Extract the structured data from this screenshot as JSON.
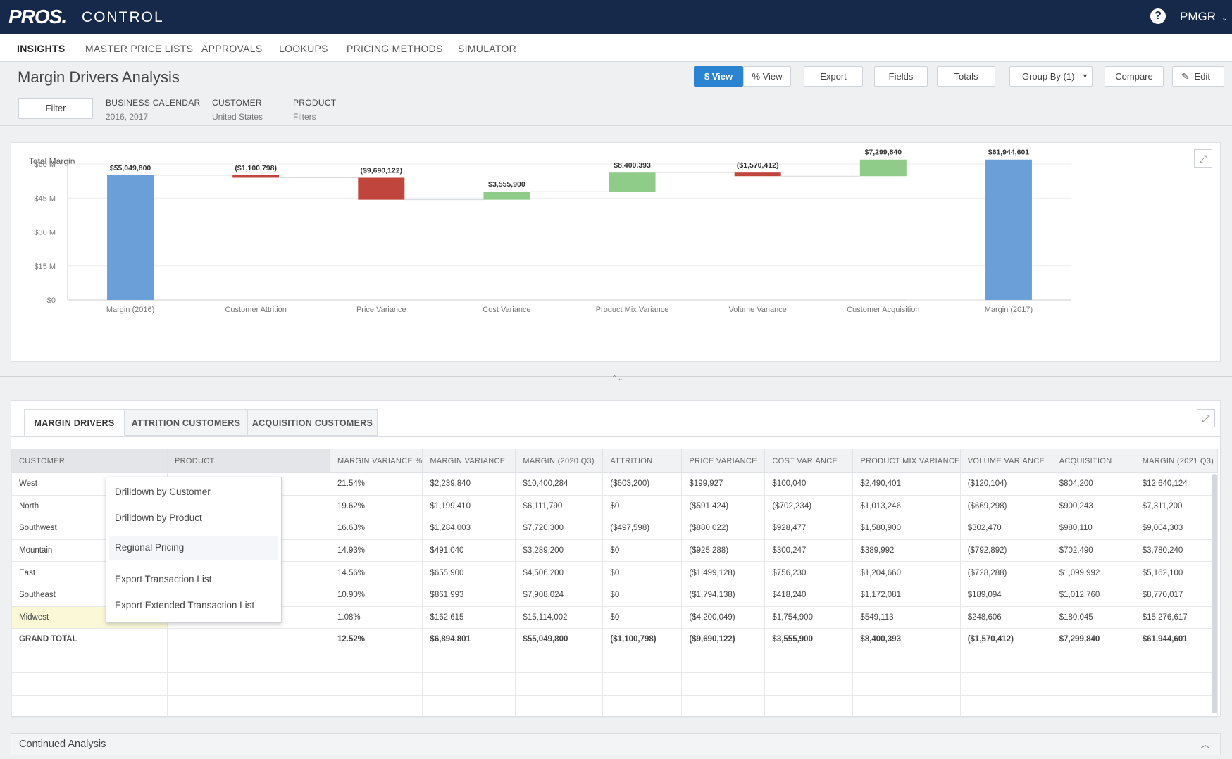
{
  "app": {
    "logo": "PROS.",
    "name": "CONTROL",
    "help_icon": "?",
    "user": "PMGR",
    "user_chevron": "⌄"
  },
  "nav": [
    {
      "label": "INSIGHTS",
      "active": true
    },
    {
      "label": "MASTER PRICE LISTS"
    },
    {
      "label": "APPROVALS"
    },
    {
      "label": "LOOKUPS"
    },
    {
      "label": "PRICING METHODS"
    },
    {
      "label": "SIMULATOR"
    }
  ],
  "page": {
    "title": "Margin Drivers Analysis"
  },
  "toolbar": {
    "dollar_view": "$ View",
    "pct_view": "% View",
    "export": "Export",
    "fields": "Fields",
    "totals": "Totals",
    "group_by": "Group By (1)",
    "compare": "Compare",
    "edit": "Edit"
  },
  "filters": {
    "button": "Filter",
    "groups": [
      {
        "label": "BUSINESS CALENDAR",
        "value": "2016, 2017"
      },
      {
        "label": "CUSTOMER",
        "value": "United States"
      },
      {
        "label": "PRODUCT",
        "value": "Filters"
      }
    ]
  },
  "chart_data": {
    "type": "bar",
    "subtype": "waterfall",
    "title": "Total Margin",
    "categories": [
      "Margin (2016)",
      "Customer Attrition",
      "Price Variance",
      "Cost Variance",
      "Product Mix Variance",
      "Volume Variance",
      "Customer Acquisition",
      "Margin (2017)"
    ],
    "values": [
      55049800,
      -1100798,
      -9690122,
      3555900,
      8400393,
      -1570412,
      7299840,
      61944601
    ],
    "kinds": [
      "total",
      "delta",
      "delta",
      "delta",
      "delta",
      "delta",
      "delta",
      "total"
    ],
    "data_labels": [
      "$55,049,800",
      "($1,100,798)",
      "($9,690,122)",
      "$3,555,900",
      "$8,400,393",
      "($1,570,412)",
      "$7,299,840",
      "$61,944,601"
    ],
    "ylim": [
      0,
      60000000
    ],
    "yticks": [
      0,
      15000000,
      30000000,
      45000000,
      60000000
    ],
    "ytick_labels": [
      "$0",
      "$15 M",
      "$30 M",
      "$45 M",
      "$60 M"
    ],
    "colors": {
      "total": "#6a9fd8",
      "increase": "#8fcc8a",
      "decrease": "#c0463d"
    },
    "grid": true
  },
  "tabs": [
    "MARGIN DRIVERS",
    "ATTRITION CUSTOMERS",
    "ACQUISITION CUSTOMERS"
  ],
  "table": {
    "columns": [
      "CUSTOMER",
      "PRODUCT",
      "MARGIN VARIANCE %",
      "MARGIN VARIANCE",
      "MARGIN (2020 Q3)",
      "ATTRITION",
      "PRICE VARIANCE",
      "COST VARIANCE",
      "PRODUCT MIX VARIANCE",
      "VOLUME VARIANCE",
      "ACQUISITION",
      "MARGIN (2021 Q3)"
    ],
    "rows": [
      [
        "West",
        "",
        "21.54%",
        "$2,239,840",
        "$10,400,284",
        "($603,200)",
        "$199,927",
        "$100,040",
        "$2,490,401",
        "($120,104)",
        "$804,200",
        "$12,640,124"
      ],
      [
        "North",
        "",
        "19.62%",
        "$1,199,410",
        "$6,111,790",
        "$0",
        "($591,424)",
        "($702,234)",
        "$1,013,246",
        "($669,298)",
        "$900,243",
        "$7,311,200"
      ],
      [
        "Southwest",
        "",
        "16.63%",
        "$1,284,003",
        "$7,720,300",
        "($497,598)",
        "($880,022)",
        "$928,477",
        "$1,580,900",
        "$302,470",
        "$980,110",
        "$9,004,303"
      ],
      [
        "Mountain",
        "",
        "14.93%",
        "$491,040",
        "$3,289,200",
        "$0",
        "($925,288)",
        "$300,247",
        "$389,992",
        "($792,892)",
        "$702,490",
        "$3,780,240"
      ],
      [
        "East",
        "",
        "14.56%",
        "$655,900",
        "$4,506,200",
        "$0",
        "($1,499,128)",
        "$756,230",
        "$1,204,660",
        "($728,288)",
        "$1,099,992",
        "$5,162,100"
      ],
      [
        "Southeast",
        "",
        "10.90%",
        "$861,993",
        "$7,908,024",
        "$0",
        "($1,794,138)",
        "$418,240",
        "$1,172,081",
        "$189,094",
        "$1,012,760",
        "$8,770,017"
      ],
      [
        "Midwest",
        "",
        "1.08%",
        "$162,615",
        "$15,114,002",
        "$0",
        "($4,200,049)",
        "$1,754,900",
        "$549,113",
        "$248,606",
        "$180,045",
        "$15,276,617"
      ]
    ],
    "total": [
      "GRAND TOTAL",
      "",
      "12.52%",
      "$6,894,801",
      "$55,049,800",
      "($1,100,798)",
      "($9,690,122)",
      "$3,555,900",
      "$8,400,393",
      "($1,570,412)",
      "$7,299,840",
      "$61,944,601"
    ]
  },
  "context_menu": [
    "Drilldown by Customer",
    "Drilldown by Product",
    "Regional Pricing",
    "Export Transaction List",
    "Export Extended Transaction List"
  ],
  "footer": {
    "label": "Continued Analysis"
  }
}
